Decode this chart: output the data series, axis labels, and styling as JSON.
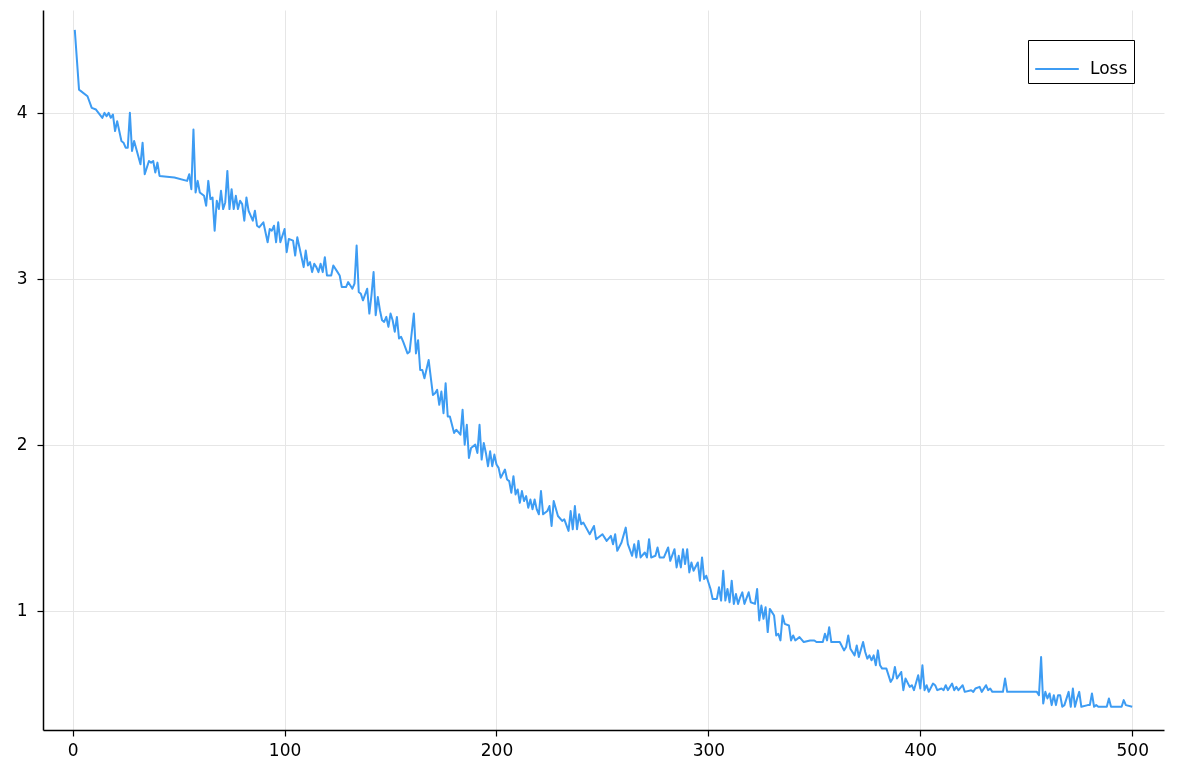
{
  "chart_data": {
    "type": "line",
    "x": [
      1,
      3,
      7,
      9,
      11,
      14,
      15,
      16,
      17,
      18,
      19,
      20,
      21,
      23,
      24,
      25,
      26,
      27,
      28,
      29,
      32,
      33,
      34,
      36,
      37,
      38,
      39,
      40,
      41,
      48,
      54,
      55,
      56,
      57,
      58,
      59,
      60,
      62,
      63,
      64,
      65,
      66,
      67,
      68,
      69,
      70,
      71,
      72,
      73,
      74,
      75,
      76,
      77,
      78,
      79,
      80,
      81,
      82,
      83,
      84,
      85,
      86,
      87,
      88,
      90,
      92,
      93,
      94,
      95,
      96,
      97,
      98,
      100,
      101,
      102,
      104,
      105,
      106,
      107,
      109,
      110,
      111,
      112,
      113,
      114,
      115,
      116,
      117,
      118,
      119,
      120,
      122,
      123,
      125,
      126,
      127,
      129,
      130,
      132,
      133,
      134,
      135,
      136,
      137,
      139,
      140,
      141,
      142,
      143,
      144,
      145,
      146,
      147,
      148,
      149,
      150,
      151,
      152,
      153,
      154,
      155,
      156,
      158,
      159,
      161,
      162,
      163,
      164,
      165,
      166,
      168,
      170,
      171,
      172,
      173,
      174,
      175,
      176,
      177,
      178,
      180,
      181,
      183,
      184,
      185,
      186,
      187,
      188,
      190,
      191,
      192,
      193,
      194,
      195,
      196,
      197,
      198,
      199,
      200,
      201,
      202,
      204,
      205,
      206,
      207,
      208,
      209,
      210,
      211,
      212,
      213,
      214,
      215,
      216,
      217,
      218,
      219,
      220,
      221,
      222,
      224,
      225,
      226,
      227,
      229,
      231,
      232,
      234,
      235,
      236,
      237,
      238,
      239,
      240,
      241,
      244,
      246,
      247,
      250,
      252,
      254,
      255,
      256,
      257,
      259,
      261,
      262,
      264,
      265,
      266,
      267,
      268,
      270,
      271,
      272,
      273,
      275,
      276,
      277,
      279,
      281,
      282,
      284,
      285,
      286,
      287,
      288,
      289,
      290,
      291,
      292,
      293,
      295,
      296,
      297,
      298,
      299,
      301,
      302,
      303,
      304,
      305,
      306,
      307,
      308,
      309,
      310,
      311,
      312,
      313,
      314,
      315,
      316,
      317,
      319,
      320,
      322,
      323,
      324,
      325,
      326,
      327,
      328,
      329,
      331,
      332,
      333,
      334,
      335,
      336,
      338,
      339,
      340,
      341,
      343,
      345,
      348,
      350,
      351,
      354,
      355,
      356,
      357,
      358,
      360,
      362,
      364,
      365,
      366,
      367,
      369,
      370,
      371,
      373,
      374,
      375,
      376,
      377,
      378,
      379,
      380,
      381,
      382,
      384,
      386,
      387,
      388,
      389,
      391,
      392,
      393,
      395,
      396,
      397,
      399,
      400,
      401,
      402,
      403,
      404,
      406,
      407,
      408,
      410,
      411,
      412,
      413,
      415,
      416,
      417,
      418,
      420,
      421,
      424,
      425,
      426,
      428,
      429,
      431,
      432,
      433,
      434,
      437,
      439,
      440,
      441,
      449,
      455,
      456,
      457,
      458,
      459,
      460,
      461,
      462,
      463,
      464,
      465,
      466,
      467,
      468,
      470,
      471,
      472,
      473,
      474,
      475,
      476,
      479,
      480,
      481,
      482,
      483,
      484,
      488,
      489,
      490,
      495,
      496,
      497,
      500
    ],
    "series": [
      {
        "name": "Loss",
        "color": "#3d9cf3",
        "values": [
          4.5,
          4.14,
          4.1,
          4.03,
          4.02,
          3.97,
          4.0,
          3.98,
          4.0,
          3.97,
          3.99,
          3.89,
          3.95,
          3.83,
          3.82,
          3.79,
          3.79,
          4.0,
          3.77,
          3.83,
          3.69,
          3.82,
          3.63,
          3.71,
          3.7,
          3.71,
          3.64,
          3.7,
          3.62,
          3.61,
          3.59,
          3.63,
          3.54,
          3.9,
          3.52,
          3.59,
          3.52,
          3.5,
          3.44,
          3.59,
          3.48,
          3.49,
          3.29,
          3.47,
          3.42,
          3.53,
          3.42,
          3.46,
          3.65,
          3.42,
          3.54,
          3.42,
          3.5,
          3.42,
          3.47,
          3.45,
          3.35,
          3.49,
          3.41,
          3.38,
          3.35,
          3.41,
          3.32,
          3.31,
          3.34,
          3.22,
          3.3,
          3.29,
          3.32,
          3.22,
          3.34,
          3.22,
          3.3,
          3.16,
          3.24,
          3.23,
          3.14,
          3.25,
          3.19,
          3.07,
          3.17,
          3.08,
          3.1,
          3.04,
          3.09,
          3.07,
          3.04,
          3.09,
          3.04,
          3.13,
          3.02,
          3.02,
          3.08,
          3.04,
          3.02,
          2.95,
          2.95,
          2.98,
          2.94,
          2.97,
          3.2,
          2.92,
          2.91,
          2.87,
          2.94,
          2.79,
          2.9,
          3.04,
          2.78,
          2.89,
          2.81,
          2.75,
          2.74,
          2.77,
          2.71,
          2.79,
          2.75,
          2.68,
          2.77,
          2.64,
          2.65,
          2.62,
          2.55,
          2.56,
          2.79,
          2.55,
          2.63,
          2.45,
          2.45,
          2.4,
          2.51,
          2.3,
          2.31,
          2.33,
          2.24,
          2.32,
          2.19,
          2.37,
          2.17,
          2.17,
          2.07,
          2.09,
          2.06,
          2.21,
          2.0,
          2.12,
          1.92,
          1.98,
          2.0,
          1.95,
          2.12,
          1.91,
          2.01,
          1.95,
          1.87,
          1.96,
          1.87,
          1.94,
          1.88,
          1.86,
          1.8,
          1.85,
          1.79,
          1.78,
          1.71,
          1.81,
          1.7,
          1.73,
          1.65,
          1.72,
          1.66,
          1.69,
          1.62,
          1.67,
          1.61,
          1.67,
          1.61,
          1.58,
          1.72,
          1.58,
          1.6,
          1.63,
          1.51,
          1.66,
          1.57,
          1.54,
          1.55,
          1.48,
          1.6,
          1.49,
          1.63,
          1.49,
          1.58,
          1.52,
          1.53,
          1.46,
          1.51,
          1.43,
          1.46,
          1.42,
          1.45,
          1.4,
          1.46,
          1.36,
          1.41,
          1.5,
          1.4,
          1.33,
          1.4,
          1.32,
          1.42,
          1.32,
          1.35,
          1.32,
          1.43,
          1.32,
          1.33,
          1.38,
          1.32,
          1.32,
          1.38,
          1.3,
          1.37,
          1.26,
          1.33,
          1.26,
          1.37,
          1.28,
          1.37,
          1.23,
          1.29,
          1.24,
          1.29,
          1.18,
          1.32,
          1.19,
          1.21,
          1.13,
          1.07,
          1.07,
          1.07,
          1.14,
          1.06,
          1.24,
          1.06,
          1.13,
          1.05,
          1.18,
          1.04,
          1.1,
          1.04,
          1.08,
          1.11,
          1.04,
          1.11,
          1.05,
          1.04,
          1.13,
          0.94,
          1.03,
          0.95,
          1.02,
          0.87,
          1.01,
          0.97,
          0.85,
          0.86,
          0.82,
          0.97,
          0.92,
          0.91,
          0.82,
          0.85,
          0.82,
          0.84,
          0.81,
          0.82,
          0.82,
          0.81,
          0.81,
          0.86,
          0.82,
          0.9,
          0.81,
          0.81,
          0.81,
          0.76,
          0.78,
          0.85,
          0.77,
          0.73,
          0.79,
          0.72,
          0.81,
          0.75,
          0.71,
          0.73,
          0.7,
          0.73,
          0.67,
          0.76,
          0.67,
          0.65,
          0.65,
          0.57,
          0.59,
          0.66,
          0.59,
          0.63,
          0.52,
          0.59,
          0.54,
          0.55,
          0.52,
          0.61,
          0.53,
          0.67,
          0.52,
          0.55,
          0.51,
          0.56,
          0.55,
          0.52,
          0.53,
          0.52,
          0.55,
          0.52,
          0.56,
          0.52,
          0.54,
          0.52,
          0.55,
          0.51,
          0.52,
          0.51,
          0.53,
          0.54,
          0.51,
          0.55,
          0.52,
          0.53,
          0.51,
          0.51,
          0.51,
          0.59,
          0.51,
          0.51,
          0.51,
          0.49,
          0.72,
          0.44,
          0.51,
          0.47,
          0.5,
          0.43,
          0.49,
          0.43,
          0.49,
          0.49,
          0.42,
          0.43,
          0.51,
          0.42,
          0.53,
          0.42,
          0.47,
          0.51,
          0.42,
          0.43,
          0.43,
          0.5,
          0.42,
          0.43,
          0.42,
          0.42,
          0.47,
          0.42,
          0.42,
          0.46,
          0.43,
          0.42
        ]
      }
    ],
    "xlim": [
      -14,
      515
    ],
    "ylim": [
      0.28,
      4.62
    ],
    "xticks": [
      0,
      100,
      200,
      300,
      400,
      500
    ],
    "yticks": [
      1,
      2,
      3,
      4
    ],
    "grid": true,
    "legend": "top right"
  }
}
